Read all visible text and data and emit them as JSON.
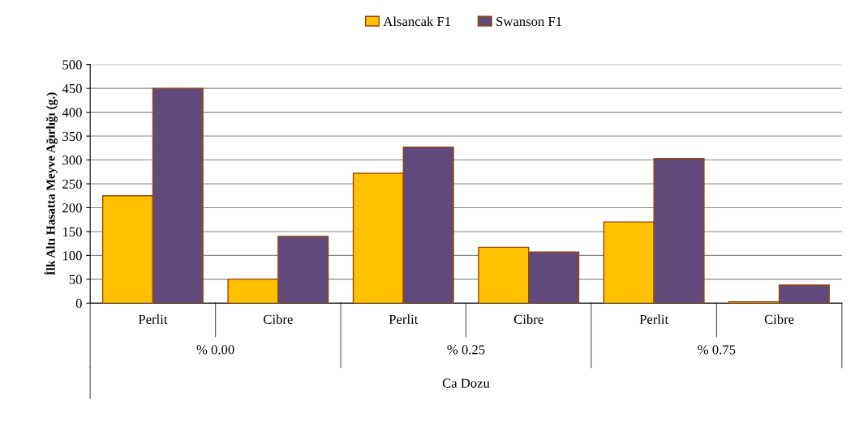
{
  "chart_data": {
    "type": "bar",
    "xlabel": "Ca Dozu",
    "ylabel": "İlk Altı Hasatta Meyve Ağırlığı (g.)",
    "categories": [
      "Perlit",
      "Cibre",
      "Perlit",
      "Cibre",
      "Perlit",
      "Cibre"
    ],
    "series": [
      {
        "name": "Alsancak F1",
        "color": "#ffc000",
        "values": [
          225,
          50,
          272,
          117,
          170,
          3
        ]
      },
      {
        "name": "Swanson F1",
        "color": "#604a7b",
        "values": [
          450,
          140,
          327,
          107,
          303,
          38
        ]
      }
    ],
    "annotations": [
      "% 0.00",
      "% 0.25",
      "% 0.75"
    ],
    "ylim": [
      0,
      500
    ],
    "yticks": [
      0,
      50,
      100,
      150,
      200,
      250,
      300,
      350,
      400,
      450,
      500
    ],
    "grid": "y",
    "legend": "top"
  }
}
